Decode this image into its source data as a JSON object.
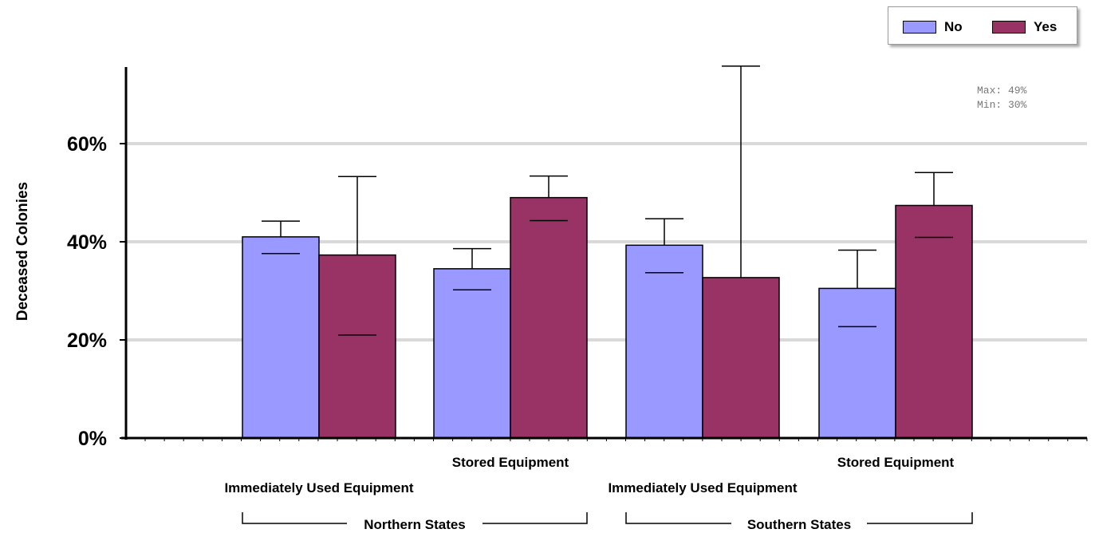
{
  "chart_data": {
    "type": "bar",
    "ylabel": "Deceased Colonies",
    "xlabel": "",
    "ylim": [
      0,
      76
    ],
    "yticks": [
      0,
      20,
      40,
      60
    ],
    "ytick_labels": [
      "0%",
      "20%",
      "40%",
      "60%"
    ],
    "grid": true,
    "legend_placement": "top-right",
    "categories": [
      "Immediately Used Equipment",
      "Stored Equipment",
      "Immediately Used Equipment",
      "Stored Equipment"
    ],
    "groups": [
      {
        "label": "Northern States",
        "categories": [
          0,
          1
        ]
      },
      {
        "label": "Southern States",
        "categories": [
          2,
          3
        ]
      }
    ],
    "series": [
      {
        "name": "No",
        "color": "#9999ff",
        "values": [
          41,
          34.5,
          39.3,
          30.5
        ],
        "error_upper": [
          44.2,
          38.6,
          44.7,
          38.3
        ],
        "error_lower": [
          37.6,
          30.2,
          33.7,
          22.7
        ]
      },
      {
        "name": "Yes",
        "color": "#993366",
        "values": [
          37.3,
          49,
          32.7,
          47.4
        ],
        "error_upper": [
          53.3,
          53.4,
          75.8,
          54.1
        ],
        "error_lower": [
          21.0,
          44.3,
          null,
          40.9
        ]
      }
    ],
    "annotations": [
      "Max: 49%",
      "Min: 30%"
    ]
  }
}
